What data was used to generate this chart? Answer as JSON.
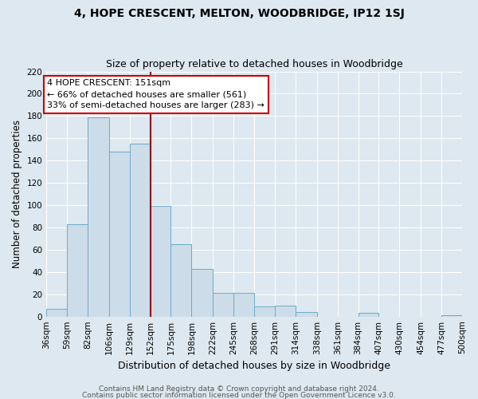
{
  "title": "4, HOPE CRESCENT, MELTON, WOODBRIDGE, IP12 1SJ",
  "subtitle": "Size of property relative to detached houses in Woodbridge",
  "xlabel": "Distribution of detached houses by size in Woodbridge",
  "ylabel": "Number of detached properties",
  "bar_edges": [
    36,
    59,
    82,
    106,
    129,
    152,
    175,
    198,
    222,
    245,
    268,
    291,
    314,
    338,
    361,
    384,
    407,
    430,
    454,
    477,
    500
  ],
  "bar_heights": [
    7,
    83,
    179,
    148,
    155,
    99,
    65,
    43,
    21,
    21,
    9,
    10,
    4,
    0,
    0,
    3,
    0,
    0,
    0,
    1
  ],
  "bar_color": "#ccdce8",
  "bar_edge_color": "#6aaccc",
  "vline_x": 152,
  "vline_color": "#990000",
  "ylim": [
    0,
    220
  ],
  "yticks": [
    0,
    20,
    40,
    60,
    80,
    100,
    120,
    140,
    160,
    180,
    200,
    220
  ],
  "bg_color": "#dde8f0",
  "grid_color": "#ffffff",
  "annotation_line1": "4 HOPE CRESCENT: 151sqm",
  "annotation_line2": "← 66% of detached houses are smaller (561)",
  "annotation_line3": "33% of semi-detached houses are larger (283) →",
  "annotation_box_color": "#ffffff",
  "annotation_box_edge": "#cc0000",
  "footer1": "Contains HM Land Registry data © Crown copyright and database right 2024.",
  "footer2": "Contains public sector information licensed under the Open Government Licence v3.0.",
  "title_fontsize": 10,
  "subtitle_fontsize": 9,
  "ylabel_fontsize": 8.5,
  "xlabel_fontsize": 9,
  "tick_fontsize": 7.5,
  "footer_fontsize": 6.5
}
